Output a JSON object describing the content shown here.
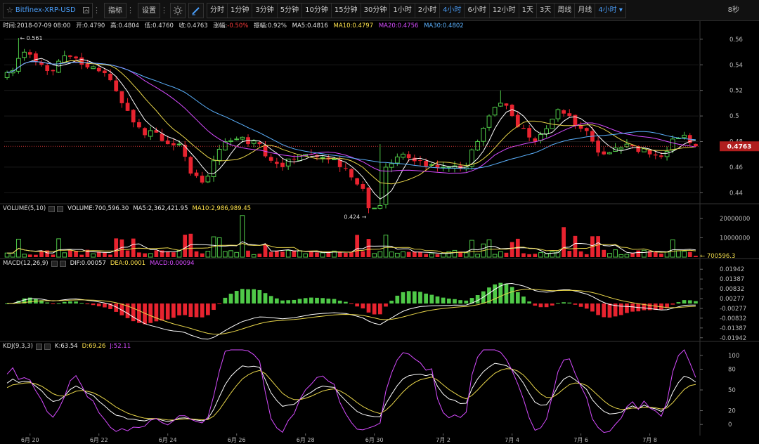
{
  "toolbar": {
    "symbol": "Bitfinex-XRP-USD",
    "indicator_label": "指标",
    "settings_label": "设置",
    "periods": [
      "分时",
      "1分钟",
      "3分钟",
      "5分钟",
      "10分钟",
      "15分钟",
      "30分钟",
      "1小时",
      "2小时",
      "4小时",
      "6小时",
      "12小时",
      "1天",
      "3天",
      "周线",
      "月线"
    ],
    "active_period": "4小时",
    "period_dropdown": "4小时",
    "countdown": "8秒"
  },
  "info": {
    "time": "时间:2018-07-09 08:00",
    "open": "开:0.4790",
    "high": "高:0.4804",
    "low": "低:0.4760",
    "close": "收:0.4763",
    "change_label": "涨幅:",
    "change_value": "-0.50%",
    "amplitude": "振幅:0.92%",
    "ma5": "MA5:0.4816",
    "ma10": "MA10:0.4797",
    "ma20": "MA20:0.4756",
    "ma30": "MA30:0.4802"
  },
  "price_chart": {
    "y_ticks": [
      "0.56",
      "0.54",
      "0.52",
      "0.5",
      "0.48",
      "0.46",
      "0.44"
    ],
    "y_values": [
      0.56,
      0.54,
      0.52,
      0.5,
      0.48,
      0.46,
      0.44
    ],
    "ylim": [
      0.4325,
      0.5665
    ],
    "current_price": "0.4763",
    "current_value": 0.4763,
    "high_marker": "← 0.561",
    "high_value": 0.561,
    "low_marker": "0.424 →",
    "low_value": 0.424
  },
  "volume_panel": {
    "title": "VOLUME(5,10)",
    "volume": "VOLUME:700,596.30",
    "ma5": "MA5:2,362,421.95",
    "ma10": "MA10:2,986,989.45",
    "y_ticks": [
      "20000000",
      "10000000"
    ],
    "y_values": [
      20000000,
      10000000
    ],
    "ymax": 22500000,
    "current_label": "← 700596.3"
  },
  "macd_panel": {
    "title": "MACD(12,26,9)",
    "dif": "DIF:0.00057",
    "dea": "DEA:0.0001",
    "macd": "MACD:0.00094",
    "y_ticks": [
      "0.01942",
      "0.01387",
      "0.00832",
      "0.00277",
      "-0.00277",
      "-0.00832",
      "-0.01387",
      "-0.01942"
    ],
    "y_values": [
      0.01942,
      0.01387,
      0.00832,
      0.00277,
      -0.00277,
      -0.00832,
      -0.01387,
      -0.01942
    ],
    "ylim": [
      -0.0215,
      0.0215
    ]
  },
  "kdj_panel": {
    "title": "KDJ(9,3,3)",
    "k": "K:63.54",
    "d": "D:69.26",
    "j": "J:52.11",
    "y_ticks": [
      "100",
      "80",
      "50",
      "20",
      "0"
    ],
    "y_values": [
      100,
      80,
      50,
      20,
      0
    ],
    "ylim": [
      -12,
      108
    ]
  },
  "x_axis": {
    "labels": [
      "6月 20",
      "6月 22",
      "6月 24",
      "6月 26",
      "6月 28",
      "6月 30",
      "7月 2",
      "7月 4",
      "7月 6",
      "7月 8"
    ],
    "candle_index": [
      4,
      16,
      28,
      40,
      52,
      64,
      76,
      88,
      100,
      112
    ]
  },
  "colors": {
    "up": "#4fc948",
    "down": "#e8232f",
    "ma5": "#ffffff",
    "ma10": "#e9d64a",
    "ma20": "#d64bff",
    "ma30": "#5cb2ff",
    "accent": "#4a9df8"
  },
  "chart_data": {
    "type": "candlestick",
    "count": 121,
    "anchors": [
      [
        0,
        0.534
      ],
      [
        2,
        0.545
      ],
      [
        4,
        0.548
      ],
      [
        6,
        0.54
      ],
      [
        8,
        0.535
      ],
      [
        10,
        0.547
      ],
      [
        12,
        0.545
      ],
      [
        14,
        0.538
      ],
      [
        16,
        0.535
      ],
      [
        18,
        0.528
      ],
      [
        20,
        0.51
      ],
      [
        22,
        0.495
      ],
      [
        24,
        0.485
      ],
      [
        26,
        0.487
      ],
      [
        28,
        0.478
      ],
      [
        30,
        0.478
      ],
      [
        32,
        0.455
      ],
      [
        34,
        0.448
      ],
      [
        36,
        0.465
      ],
      [
        38,
        0.48
      ],
      [
        40,
        0.482
      ],
      [
        42,
        0.478
      ],
      [
        44,
        0.478
      ],
      [
        46,
        0.465
      ],
      [
        48,
        0.46
      ],
      [
        50,
        0.466
      ],
      [
        52,
        0.47
      ],
      [
        54,
        0.468
      ],
      [
        56,
        0.466
      ],
      [
        58,
        0.46
      ],
      [
        60,
        0.452
      ],
      [
        62,
        0.443
      ],
      [
        63,
        0.428
      ],
      [
        64,
        0.428
      ],
      [
        65,
        0.43
      ],
      [
        66,
        0.46
      ],
      [
        68,
        0.468
      ],
      [
        70,
        0.467
      ],
      [
        72,
        0.465
      ],
      [
        74,
        0.462
      ],
      [
        76,
        0.46
      ],
      [
        78,
        0.461
      ],
      [
        80,
        0.46
      ],
      [
        82,
        0.48
      ],
      [
        84,
        0.5
      ],
      [
        86,
        0.51
      ],
      [
        88,
        0.5
      ],
      [
        90,
        0.49
      ],
      [
        92,
        0.48
      ],
      [
        94,
        0.49
      ],
      [
        96,
        0.505
      ],
      [
        98,
        0.5
      ],
      [
        100,
        0.49
      ],
      [
        102,
        0.48
      ],
      [
        104,
        0.47
      ],
      [
        106,
        0.475
      ],
      [
        108,
        0.478
      ],
      [
        110,
        0.472
      ],
      [
        112,
        0.47
      ],
      [
        114,
        0.468
      ],
      [
        116,
        0.482
      ],
      [
        118,
        0.485
      ],
      [
        120,
        0.4763
      ]
    ]
  }
}
